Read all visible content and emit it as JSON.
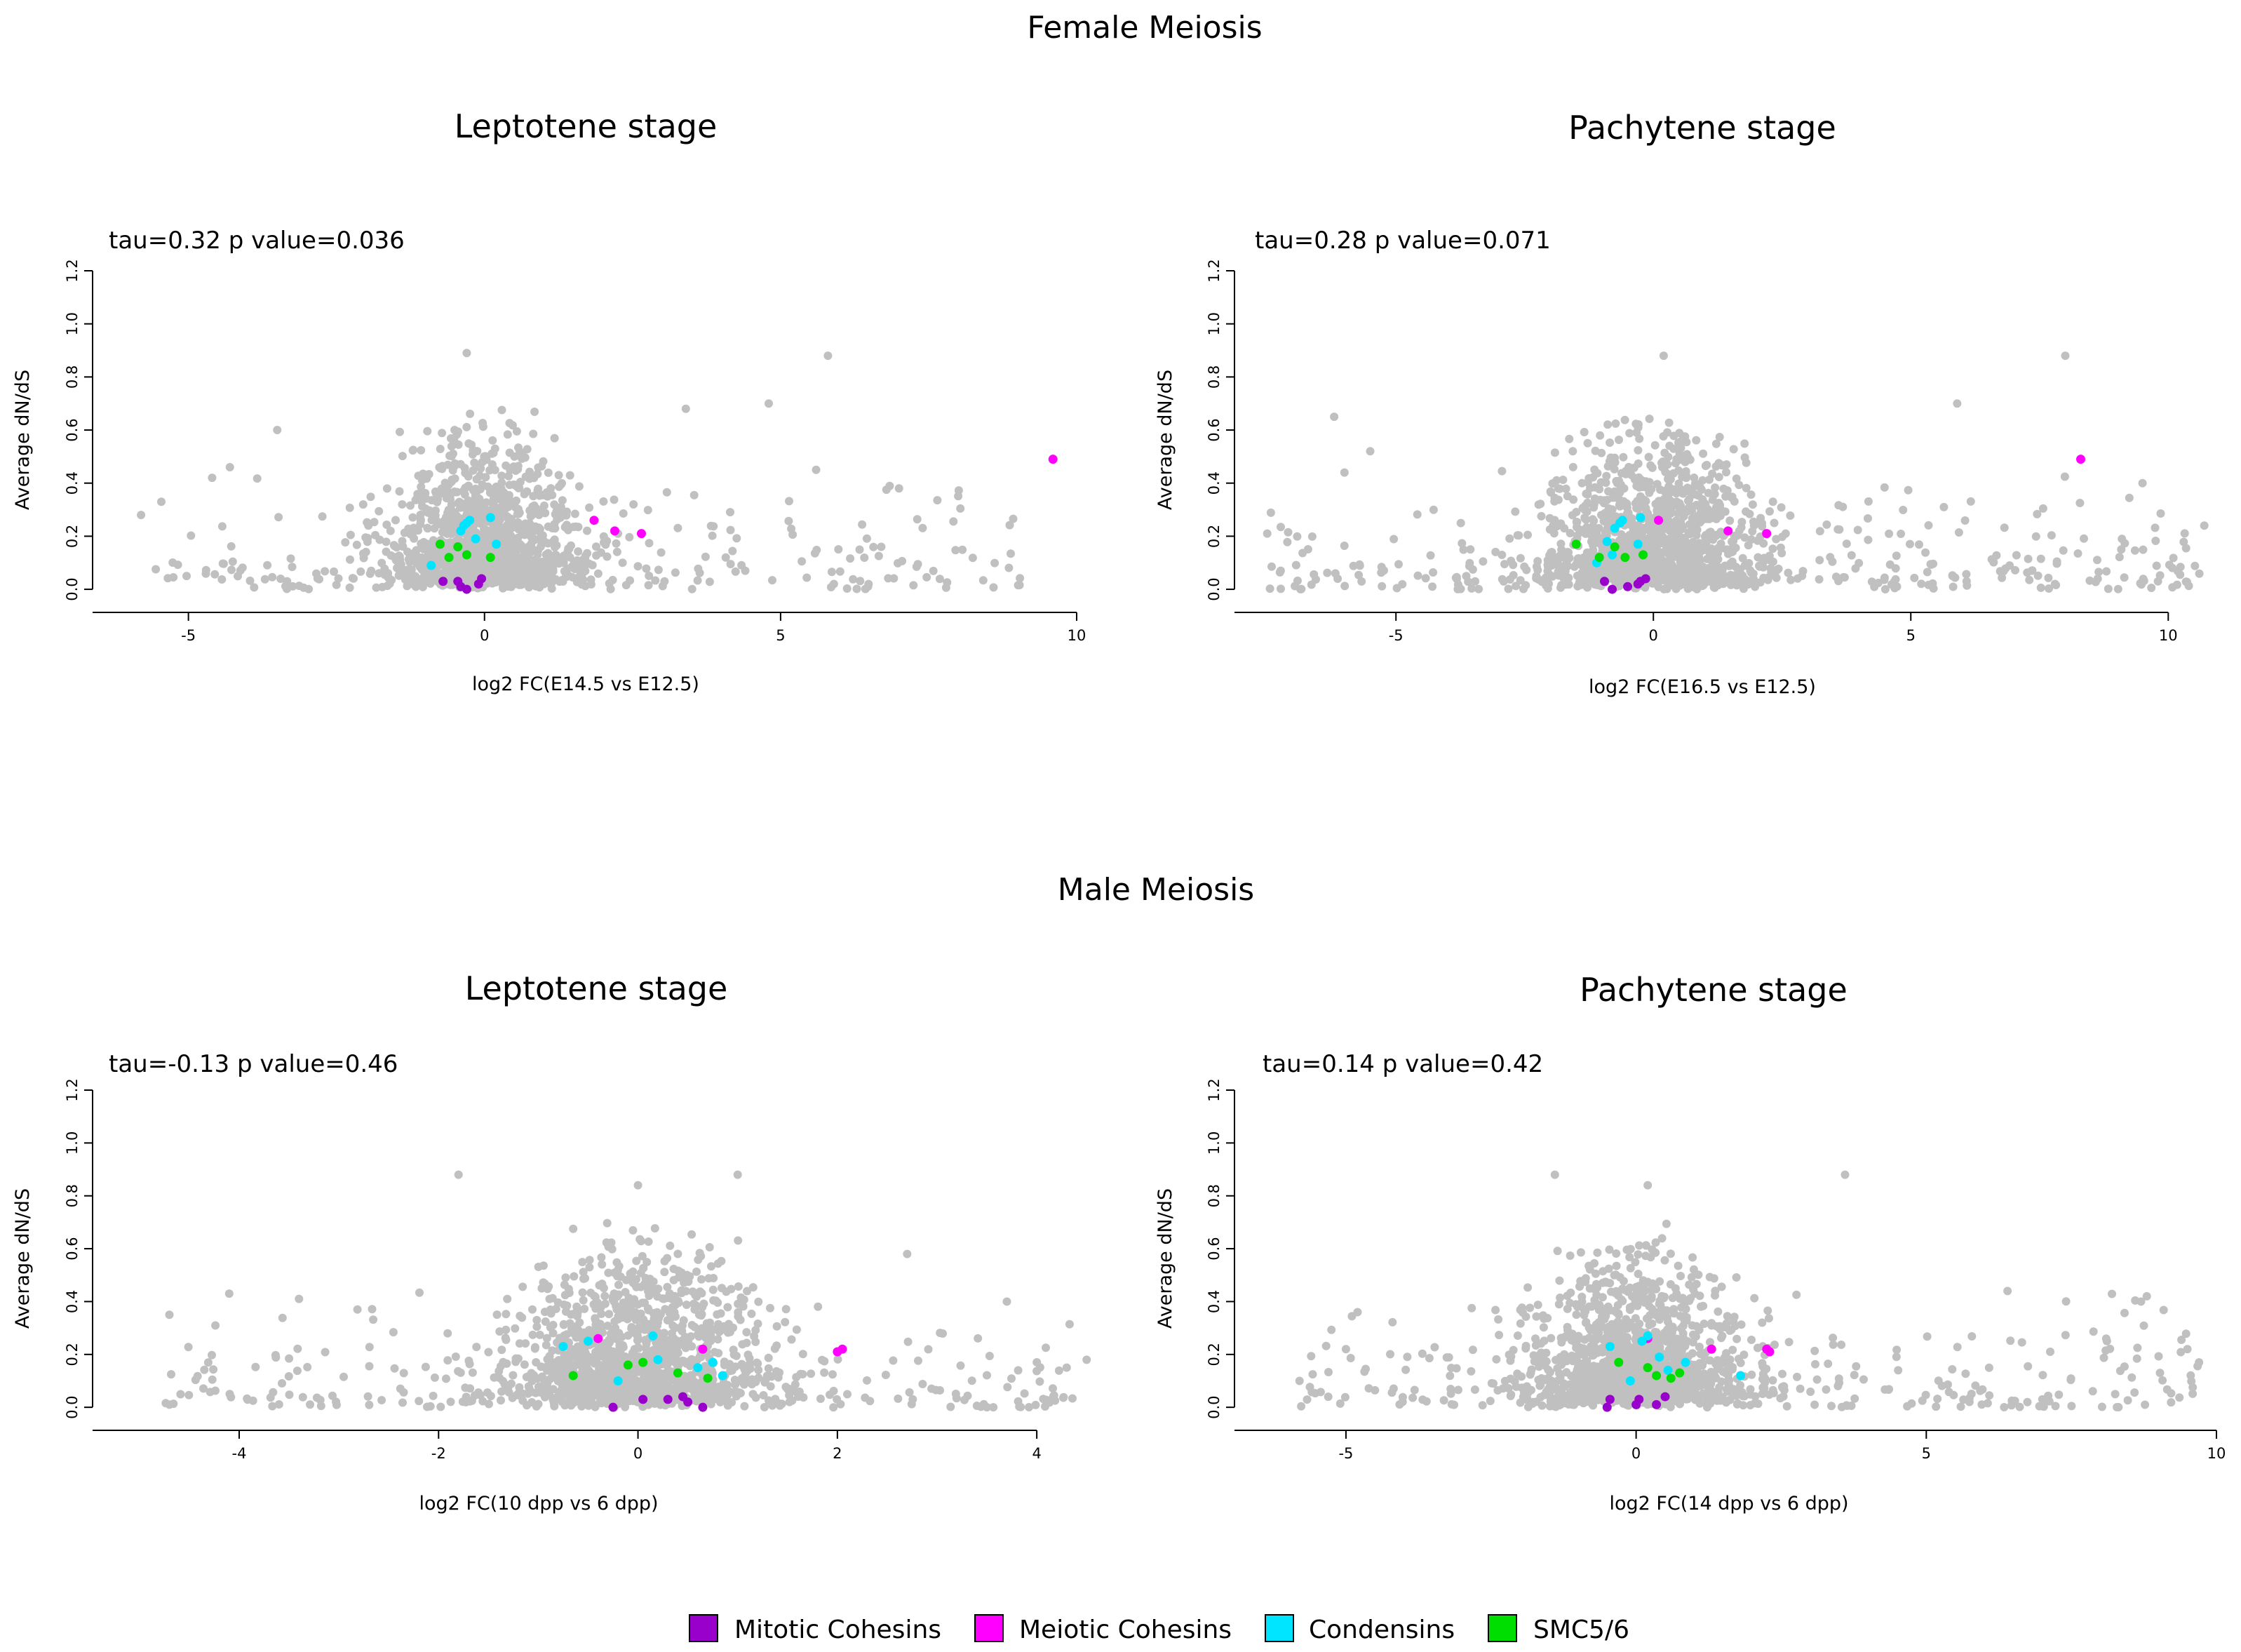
{
  "figure": {
    "section_titles": [
      "Female Meiosis",
      "Male Meiosis"
    ],
    "legend": [
      {
        "label": "Mitotic Cohesins",
        "color": "#9900cc"
      },
      {
        "label": "Meiotic Cohesins",
        "color": "#ff00ff"
      },
      {
        "label": "Condensins",
        "color": "#00e5ff"
      },
      {
        "label": "SMC5/6",
        "color": "#00dd00"
      }
    ],
    "background_color": "#c0c0c0"
  },
  "chart_data": [
    {
      "type": "scatter",
      "section": "Female Meiosis",
      "title": "Leptotene stage",
      "annotation": "tau=0.32 p value=0.036",
      "xlabel": "log2 FC(E14.5 vs E12.5)",
      "ylabel": "Average dN/dS",
      "xlim": [
        -6.5,
        10
      ],
      "ylim": [
        -0.05,
        1.2
      ],
      "xticks": [
        -5,
        0,
        5,
        10
      ],
      "yticks": [
        0.0,
        0.2,
        0.4,
        0.6,
        0.8,
        1.0,
        1.2
      ],
      "background_cloud": {
        "center_x": 0,
        "spread_x": 1.1,
        "tail_x": [
          -5.8,
          9.2
        ],
        "y_max": 0.9,
        "count": 1400
      },
      "outliers": [
        [
          -5.8,
          0.28
        ],
        [
          -4.6,
          0.42
        ],
        [
          -4.3,
          0.46
        ],
        [
          -3.5,
          0.6
        ],
        [
          5.8,
          0.88
        ],
        [
          7.0,
          0.38
        ],
        [
          6.7,
          0.16
        ],
        [
          5.9,
          0.02
        ],
        [
          -0.3,
          0.89
        ],
        [
          4.8,
          0.7
        ],
        [
          5.6,
          0.45
        ],
        [
          3.4,
          0.68
        ]
      ],
      "series": [
        {
          "name": "Mitotic Cohesins",
          "color": "#9900cc",
          "points": [
            [
              -0.7,
              0.03
            ],
            [
              -0.45,
              0.03
            ],
            [
              -0.4,
              0.01
            ],
            [
              -0.3,
              0.0
            ],
            [
              -0.1,
              0.02
            ],
            [
              -0.05,
              0.04
            ]
          ]
        },
        {
          "name": "Meiotic Cohesins",
          "color": "#ff00ff",
          "points": [
            [
              1.85,
              0.26
            ],
            [
              2.2,
              0.22
            ],
            [
              2.65,
              0.21
            ],
            [
              9.6,
              0.49
            ]
          ]
        },
        {
          "name": "Condensins",
          "color": "#00e5ff",
          "points": [
            [
              -0.4,
              0.22
            ],
            [
              -0.35,
              0.24
            ],
            [
              -0.3,
              0.25
            ],
            [
              -0.25,
              0.26
            ],
            [
              0.1,
              0.27
            ],
            [
              0.2,
              0.17
            ],
            [
              -0.15,
              0.19
            ],
            [
              -0.9,
              0.09
            ]
          ]
        },
        {
          "name": "SMC5/6",
          "color": "#00dd00",
          "points": [
            [
              -0.75,
              0.17
            ],
            [
              -0.6,
              0.12
            ],
            [
              -0.45,
              0.16
            ],
            [
              -0.3,
              0.13
            ],
            [
              0.1,
              0.12
            ]
          ]
        }
      ]
    },
    {
      "type": "scatter",
      "section": "Female Meiosis",
      "title": "Pachytene stage",
      "annotation": "tau=0.28 p value=0.071",
      "xlabel": "log2 FC(E16.5 vs E12.5)",
      "ylabel": "Average dN/dS",
      "xlim": [
        -8,
        10.8
      ],
      "ylim": [
        -0.05,
        1.2
      ],
      "xticks": [
        -5,
        0,
        5,
        10
      ],
      "yticks": [
        0.0,
        0.2,
        0.4,
        0.6,
        0.8,
        1.0,
        1.2
      ],
      "background_cloud": {
        "center_x": 0,
        "spread_x": 1.5,
        "tail_x": [
          -7.5,
          10.7
        ],
        "y_max": 0.9,
        "count": 1500
      },
      "outliers": [
        [
          -7.5,
          0.21
        ],
        [
          -6.2,
          0.65
        ],
        [
          -5.5,
          0.52
        ],
        [
          -6.0,
          0.44
        ],
        [
          8.0,
          0.88
        ],
        [
          9.5,
          0.4
        ],
        [
          9.8,
          0.03
        ],
        [
          10.7,
          0.24
        ],
        [
          0.2,
          0.88
        ],
        [
          5.9,
          0.7
        ],
        [
          9.1,
          0.19
        ],
        [
          7.8,
          0.02
        ]
      ],
      "series": [
        {
          "name": "Mitotic Cohesins",
          "color": "#9900cc",
          "points": [
            [
              -0.95,
              0.03
            ],
            [
              -0.8,
              0.0
            ],
            [
              -0.5,
              0.01
            ],
            [
              -0.3,
              0.02
            ],
            [
              -0.15,
              0.04
            ],
            [
              -0.25,
              0.03
            ]
          ]
        },
        {
          "name": "Meiotic Cohesins",
          "color": "#ff00ff",
          "points": [
            [
              0.1,
              0.26
            ],
            [
              1.45,
              0.22
            ],
            [
              2.2,
              0.21
            ],
            [
              8.3,
              0.49
            ]
          ]
        },
        {
          "name": "Condensins",
          "color": "#00e5ff",
          "points": [
            [
              -0.75,
              0.23
            ],
            [
              -0.65,
              0.25
            ],
            [
              -0.6,
              0.26
            ],
            [
              -0.25,
              0.27
            ],
            [
              -0.3,
              0.17
            ],
            [
              -0.9,
              0.18
            ],
            [
              -1.1,
              0.1
            ],
            [
              -0.8,
              0.13
            ]
          ]
        },
        {
          "name": "SMC5/6",
          "color": "#00dd00",
          "points": [
            [
              -1.5,
              0.17
            ],
            [
              -1.05,
              0.12
            ],
            [
              -0.75,
              0.16
            ],
            [
              -0.55,
              0.12
            ],
            [
              -0.2,
              0.13
            ]
          ]
        }
      ]
    },
    {
      "type": "scatter",
      "section": "Male Meiosis",
      "title": "Leptotene stage",
      "annotation": "tau=-0.13 p value=0.46",
      "xlabel": "log2 FC(10 dpp vs 6 dpp)",
      "ylabel": "Average dN/dS",
      "xlim": [
        -5.4,
        4.4
      ],
      "ylim": [
        -0.05,
        1.2
      ],
      "xticks": [
        -4,
        -2,
        0,
        2,
        4
      ],
      "yticks": [
        0.0,
        0.2,
        0.4,
        0.6,
        0.8,
        1.0,
        1.2
      ],
      "background_cloud": {
        "center_x": 0,
        "spread_x": 0.9,
        "tail_x": [
          -4.8,
          4.5
        ],
        "y_max": 0.9,
        "count": 1500
      },
      "outliers": [
        [
          -4.7,
          0.35
        ],
        [
          -4.1,
          0.43
        ],
        [
          -3.4,
          0.41
        ],
        [
          -1.8,
          0.88
        ],
        [
          0.0,
          0.84
        ],
        [
          1.0,
          0.88
        ],
        [
          2.7,
          0.58
        ],
        [
          3.7,
          0.4
        ],
        [
          4.3,
          0.15
        ],
        [
          4.5,
          0.18
        ],
        [
          -4.7,
          0.01
        ],
        [
          3.5,
          0.0
        ]
      ],
      "series": [
        {
          "name": "Mitotic Cohesins",
          "color": "#9900cc",
          "points": [
            [
              -0.25,
              0.0
            ],
            [
              0.05,
              0.03
            ],
            [
              0.3,
              0.03
            ],
            [
              0.45,
              0.04
            ],
            [
              0.5,
              0.02
            ],
            [
              0.65,
              0.0
            ]
          ]
        },
        {
          "name": "Meiotic Cohesins",
          "color": "#ff00ff",
          "points": [
            [
              -0.4,
              0.26
            ],
            [
              0.65,
              0.22
            ],
            [
              2.0,
              0.21
            ],
            [
              2.05,
              0.22
            ]
          ]
        },
        {
          "name": "Condensins",
          "color": "#00e5ff",
          "points": [
            [
              -0.75,
              0.23
            ],
            [
              -0.5,
              0.25
            ],
            [
              0.15,
              0.27
            ],
            [
              0.75,
              0.17
            ],
            [
              0.85,
              0.12
            ],
            [
              -0.2,
              0.1
            ],
            [
              0.2,
              0.18
            ],
            [
              0.6,
              0.15
            ]
          ]
        },
        {
          "name": "SMC5/6",
          "color": "#00dd00",
          "points": [
            [
              -0.65,
              0.12
            ],
            [
              -0.1,
              0.16
            ],
            [
              0.05,
              0.17
            ],
            [
              0.4,
              0.13
            ],
            [
              0.7,
              0.11
            ]
          ]
        }
      ]
    },
    {
      "type": "scatter",
      "section": "Male Meiosis",
      "title": "Pachytene stage",
      "annotation": "tau=0.14 p value=0.42",
      "xlabel": "log2 FC(14 dpp vs 6 dpp)",
      "ylabel": "Average dN/dS",
      "xlim": [
        -6.8,
        10
      ],
      "ylim": [
        -0.05,
        1.2
      ],
      "xticks": [
        -5,
        0,
        5,
        10
      ],
      "yticks": [
        0.0,
        0.2,
        0.4,
        0.6,
        0.8,
        1.0,
        1.2
      ],
      "background_cloud": {
        "center_x": 0,
        "spread_x": 1.3,
        "tail_x": [
          -5.8,
          9.7
        ],
        "y_max": 0.9,
        "count": 1500
      },
      "outliers": [
        [
          -5.8,
          0.1
        ],
        [
          -5.0,
          0.22
        ],
        [
          -4.8,
          0.36
        ],
        [
          -1.4,
          0.88
        ],
        [
          0.2,
          0.84
        ],
        [
          3.6,
          0.88
        ],
        [
          8.8,
          0.42
        ],
        [
          8.7,
          0.4
        ],
        [
          9.7,
          0.17
        ],
        [
          7.0,
          0.03
        ],
        [
          6.4,
          0.44
        ],
        [
          8.1,
          0.26
        ]
      ],
      "series": [
        {
          "name": "Mitotic Cohesins",
          "color": "#9900cc",
          "points": [
            [
              -0.5,
              0.0
            ],
            [
              -0.45,
              0.03
            ],
            [
              0.0,
              0.01
            ],
            [
              0.05,
              0.03
            ],
            [
              0.35,
              0.01
            ],
            [
              0.5,
              0.04
            ]
          ]
        },
        {
          "name": "Meiotic Cohesins",
          "color": "#ff00ff",
          "points": [
            [
              0.2,
              0.26
            ],
            [
              1.3,
              0.22
            ],
            [
              2.3,
              0.21
            ],
            [
              2.25,
              0.22
            ]
          ]
        },
        {
          "name": "Condensins",
          "color": "#00e5ff",
          "points": [
            [
              -0.45,
              0.23
            ],
            [
              0.1,
              0.25
            ],
            [
              0.2,
              0.27
            ],
            [
              0.55,
              0.14
            ],
            [
              0.85,
              0.17
            ],
            [
              1.8,
              0.12
            ],
            [
              -0.1,
              0.1
            ],
            [
              0.4,
              0.19
            ]
          ]
        },
        {
          "name": "SMC5/6",
          "color": "#00dd00",
          "points": [
            [
              -0.3,
              0.17
            ],
            [
              0.2,
              0.15
            ],
            [
              0.35,
              0.12
            ],
            [
              0.6,
              0.11
            ],
            [
              0.75,
              0.13
            ]
          ]
        }
      ]
    }
  ]
}
